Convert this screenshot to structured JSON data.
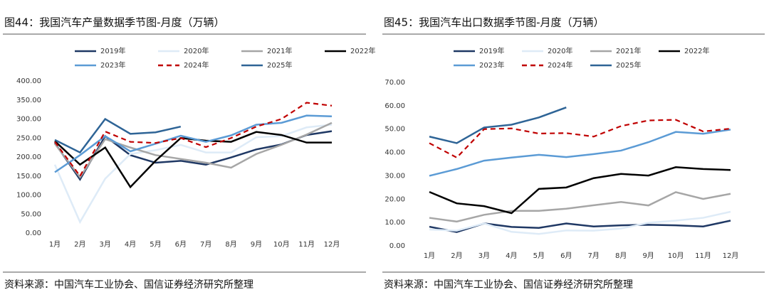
{
  "chart_data": [
    {
      "type": "line",
      "title": "图44：我国汽车产量数据季节图-月度（万辆）",
      "source": "资料来源：中国汽车工业协会、国信证券经济研究所整理",
      "categories": [
        "1月",
        "2月",
        "3月",
        "4月",
        "5月",
        "6月",
        "7月",
        "8月",
        "9月",
        "10月",
        "11月",
        "12月"
      ],
      "ylim": [
        0,
        400
      ],
      "yticks": [
        {
          "value": 0,
          "label": "0.00"
        },
        {
          "value": 50,
          "label": "50.00"
        },
        {
          "value": 100,
          "label": "100.00"
        },
        {
          "value": 150,
          "label": "150.00"
        },
        {
          "value": 200,
          "label": "200.00"
        },
        {
          "value": 250,
          "label": "250.00"
        },
        {
          "value": 300,
          "label": "300.00"
        },
        {
          "value": 350,
          "label": "350.00"
        },
        {
          "value": 400,
          "label": "400.00"
        }
      ],
      "series": [
        {
          "name": "2019年",
          "color": "#1f3864",
          "values": [
            237,
            141,
            255,
            205,
            185,
            190,
            180,
            199,
            220,
            233,
            258,
            268
          ]
        },
        {
          "name": "2020年",
          "color": "#deebf7",
          "values": [
            180,
            29,
            143,
            208,
            218,
            232,
            212,
            212,
            252,
            255,
            278,
            285
          ]
        },
        {
          "name": "2021年",
          "color": "#a6a6a6",
          "values": [
            235,
            147,
            247,
            225,
            205,
            195,
            185,
            172,
            208,
            232,
            259,
            290
          ]
        },
        {
          "name": "2022年",
          "color": "#000000",
          "values": [
            242,
            180,
            225,
            121,
            190,
            250,
            243,
            240,
            266,
            258,
            238,
            238
          ]
        },
        {
          "name": "2023年",
          "color": "#5b9bd5",
          "values": [
            160,
            205,
            255,
            215,
            235,
            256,
            240,
            257,
            285,
            290,
            309,
            307
          ]
        },
        {
          "name": "2024年",
          "color": "#c00000",
          "dashed": true,
          "values": [
            240,
            150,
            267,
            240,
            237,
            250,
            226,
            250,
            280,
            300,
            343,
            335
          ]
        },
        {
          "name": "2025年",
          "color": "#2e6496",
          "values": [
            245,
            212,
            300,
            261,
            265,
            280,
            null,
            null,
            null,
            null,
            null,
            null
          ]
        }
      ]
    },
    {
      "type": "line",
      "title": "图45：我国汽车出口数据季节图-月度（万辆）",
      "source": "资料来源：中国汽车工业协会、国信证券经济研究所整理",
      "categories": [
        "1月",
        "2月",
        "3月",
        "4月",
        "5月",
        "6月",
        "7月",
        "8月",
        "9月",
        "10月",
        "11月",
        "12月"
      ],
      "ylim": [
        0,
        70
      ],
      "yticks": [
        {
          "value": 0,
          "label": "0.00"
        },
        {
          "value": 10,
          "label": "10.00"
        },
        {
          "value": 20,
          "label": "20.00"
        },
        {
          "value": 30,
          "label": "30.00"
        },
        {
          "value": 40,
          "label": "40.00"
        },
        {
          "value": 50,
          "label": "50.00"
        },
        {
          "value": 60,
          "label": "60.00"
        },
        {
          "value": 70,
          "label": "70.00"
        }
      ],
      "series": [
        {
          "name": "2019年",
          "color": "#1f3864",
          "values": [
            8.2,
            5.9,
            9.6,
            8.1,
            7.7,
            9.6,
            8.3,
            8.8,
            9.0,
            8.8,
            8.3,
            10.8
          ]
        },
        {
          "name": "2020年",
          "color": "#deebf7",
          "values": [
            7.0,
            6.5,
            9.6,
            6.0,
            5.1,
            6.6,
            6.5,
            7.4,
            9.9,
            10.8,
            12.0,
            14.6
          ]
        },
        {
          "name": "2021年",
          "color": "#a6a6a6",
          "values": [
            12.0,
            10.4,
            13.3,
            15.0,
            15.0,
            15.9,
            17.4,
            18.8,
            17.3,
            23.0,
            20.1,
            22.3
          ]
        },
        {
          "name": "2022年",
          "color": "#000000",
          "values": [
            23.1,
            18.2,
            17.0,
            14.0,
            24.4,
            25.0,
            29.0,
            30.8,
            30.1,
            33.7,
            32.9,
            32.5
          ]
        },
        {
          "name": "2023年",
          "color": "#5b9bd5",
          "values": [
            30.0,
            32.9,
            36.5,
            37.8,
            39.0,
            38.0,
            39.3,
            40.8,
            44.4,
            48.8,
            48.0,
            49.8
          ]
        },
        {
          "name": "2024年",
          "color": "#c00000",
          "dashed": true,
          "values": [
            44.0,
            37.8,
            50.0,
            50.3,
            48.1,
            48.3,
            46.8,
            51.3,
            53.7,
            54.0,
            49.0,
            50.2
          ]
        },
        {
          "name": "2025年",
          "color": "#2e6496",
          "values": [
            46.8,
            44.0,
            50.7,
            51.9,
            55.0,
            59.3,
            null,
            null,
            null,
            null,
            null,
            null
          ]
        }
      ]
    }
  ]
}
